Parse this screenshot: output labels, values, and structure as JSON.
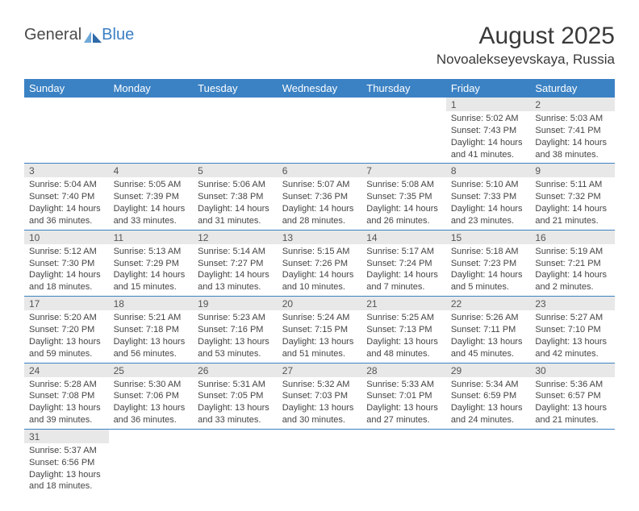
{
  "logo": {
    "text_left": "General",
    "text_right": "Blue"
  },
  "title": "August 2025",
  "location": "Novoalekseyevskaya, Russia",
  "colors": {
    "header_bg": "#3b82c4",
    "header_fg": "#ffffff",
    "daynum_bg": "#e8e8e8",
    "daynum_fg": "#555555",
    "body_fg": "#444444",
    "rule": "#3b82c4",
    "logo_gray": "#4a4a4a",
    "logo_blue": "#3b7fc4"
  },
  "weekdays": [
    "Sunday",
    "Monday",
    "Tuesday",
    "Wednesday",
    "Thursday",
    "Friday",
    "Saturday"
  ],
  "weeks": [
    [
      null,
      null,
      null,
      null,
      null,
      {
        "n": "1",
        "sr": "Sunrise: 5:02 AM",
        "ss": "Sunset: 7:43 PM",
        "d1": "Daylight: 14 hours",
        "d2": "and 41 minutes."
      },
      {
        "n": "2",
        "sr": "Sunrise: 5:03 AM",
        "ss": "Sunset: 7:41 PM",
        "d1": "Daylight: 14 hours",
        "d2": "and 38 minutes."
      }
    ],
    [
      {
        "n": "3",
        "sr": "Sunrise: 5:04 AM",
        "ss": "Sunset: 7:40 PM",
        "d1": "Daylight: 14 hours",
        "d2": "and 36 minutes."
      },
      {
        "n": "4",
        "sr": "Sunrise: 5:05 AM",
        "ss": "Sunset: 7:39 PM",
        "d1": "Daylight: 14 hours",
        "d2": "and 33 minutes."
      },
      {
        "n": "5",
        "sr": "Sunrise: 5:06 AM",
        "ss": "Sunset: 7:38 PM",
        "d1": "Daylight: 14 hours",
        "d2": "and 31 minutes."
      },
      {
        "n": "6",
        "sr": "Sunrise: 5:07 AM",
        "ss": "Sunset: 7:36 PM",
        "d1": "Daylight: 14 hours",
        "d2": "and 28 minutes."
      },
      {
        "n": "7",
        "sr": "Sunrise: 5:08 AM",
        "ss": "Sunset: 7:35 PM",
        "d1": "Daylight: 14 hours",
        "d2": "and 26 minutes."
      },
      {
        "n": "8",
        "sr": "Sunrise: 5:10 AM",
        "ss": "Sunset: 7:33 PM",
        "d1": "Daylight: 14 hours",
        "d2": "and 23 minutes."
      },
      {
        "n": "9",
        "sr": "Sunrise: 5:11 AM",
        "ss": "Sunset: 7:32 PM",
        "d1": "Daylight: 14 hours",
        "d2": "and 21 minutes."
      }
    ],
    [
      {
        "n": "10",
        "sr": "Sunrise: 5:12 AM",
        "ss": "Sunset: 7:30 PM",
        "d1": "Daylight: 14 hours",
        "d2": "and 18 minutes."
      },
      {
        "n": "11",
        "sr": "Sunrise: 5:13 AM",
        "ss": "Sunset: 7:29 PM",
        "d1": "Daylight: 14 hours",
        "d2": "and 15 minutes."
      },
      {
        "n": "12",
        "sr": "Sunrise: 5:14 AM",
        "ss": "Sunset: 7:27 PM",
        "d1": "Daylight: 14 hours",
        "d2": "and 13 minutes."
      },
      {
        "n": "13",
        "sr": "Sunrise: 5:15 AM",
        "ss": "Sunset: 7:26 PM",
        "d1": "Daylight: 14 hours",
        "d2": "and 10 minutes."
      },
      {
        "n": "14",
        "sr": "Sunrise: 5:17 AM",
        "ss": "Sunset: 7:24 PM",
        "d1": "Daylight: 14 hours",
        "d2": "and 7 minutes."
      },
      {
        "n": "15",
        "sr": "Sunrise: 5:18 AM",
        "ss": "Sunset: 7:23 PM",
        "d1": "Daylight: 14 hours",
        "d2": "and 5 minutes."
      },
      {
        "n": "16",
        "sr": "Sunrise: 5:19 AM",
        "ss": "Sunset: 7:21 PM",
        "d1": "Daylight: 14 hours",
        "d2": "and 2 minutes."
      }
    ],
    [
      {
        "n": "17",
        "sr": "Sunrise: 5:20 AM",
        "ss": "Sunset: 7:20 PM",
        "d1": "Daylight: 13 hours",
        "d2": "and 59 minutes."
      },
      {
        "n": "18",
        "sr": "Sunrise: 5:21 AM",
        "ss": "Sunset: 7:18 PM",
        "d1": "Daylight: 13 hours",
        "d2": "and 56 minutes."
      },
      {
        "n": "19",
        "sr": "Sunrise: 5:23 AM",
        "ss": "Sunset: 7:16 PM",
        "d1": "Daylight: 13 hours",
        "d2": "and 53 minutes."
      },
      {
        "n": "20",
        "sr": "Sunrise: 5:24 AM",
        "ss": "Sunset: 7:15 PM",
        "d1": "Daylight: 13 hours",
        "d2": "and 51 minutes."
      },
      {
        "n": "21",
        "sr": "Sunrise: 5:25 AM",
        "ss": "Sunset: 7:13 PM",
        "d1": "Daylight: 13 hours",
        "d2": "and 48 minutes."
      },
      {
        "n": "22",
        "sr": "Sunrise: 5:26 AM",
        "ss": "Sunset: 7:11 PM",
        "d1": "Daylight: 13 hours",
        "d2": "and 45 minutes."
      },
      {
        "n": "23",
        "sr": "Sunrise: 5:27 AM",
        "ss": "Sunset: 7:10 PM",
        "d1": "Daylight: 13 hours",
        "d2": "and 42 minutes."
      }
    ],
    [
      {
        "n": "24",
        "sr": "Sunrise: 5:28 AM",
        "ss": "Sunset: 7:08 PM",
        "d1": "Daylight: 13 hours",
        "d2": "and 39 minutes."
      },
      {
        "n": "25",
        "sr": "Sunrise: 5:30 AM",
        "ss": "Sunset: 7:06 PM",
        "d1": "Daylight: 13 hours",
        "d2": "and 36 minutes."
      },
      {
        "n": "26",
        "sr": "Sunrise: 5:31 AM",
        "ss": "Sunset: 7:05 PM",
        "d1": "Daylight: 13 hours",
        "d2": "and 33 minutes."
      },
      {
        "n": "27",
        "sr": "Sunrise: 5:32 AM",
        "ss": "Sunset: 7:03 PM",
        "d1": "Daylight: 13 hours",
        "d2": "and 30 minutes."
      },
      {
        "n": "28",
        "sr": "Sunrise: 5:33 AM",
        "ss": "Sunset: 7:01 PM",
        "d1": "Daylight: 13 hours",
        "d2": "and 27 minutes."
      },
      {
        "n": "29",
        "sr": "Sunrise: 5:34 AM",
        "ss": "Sunset: 6:59 PM",
        "d1": "Daylight: 13 hours",
        "d2": "and 24 minutes."
      },
      {
        "n": "30",
        "sr": "Sunrise: 5:36 AM",
        "ss": "Sunset: 6:57 PM",
        "d1": "Daylight: 13 hours",
        "d2": "and 21 minutes."
      }
    ],
    [
      {
        "n": "31",
        "sr": "Sunrise: 5:37 AM",
        "ss": "Sunset: 6:56 PM",
        "d1": "Daylight: 13 hours",
        "d2": "and 18 minutes."
      },
      null,
      null,
      null,
      null,
      null,
      null
    ]
  ]
}
